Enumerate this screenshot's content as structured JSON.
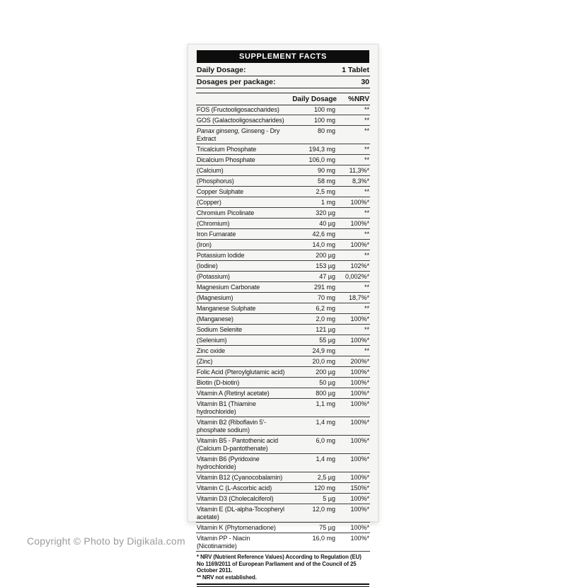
{
  "watermark": "Copyright © Photo by Digikala.com",
  "label": {
    "title": "SUPPLEMENT FACTS",
    "info_rows": [
      {
        "name": "Daily Dosage:",
        "value": "1 Tablet"
      },
      {
        "name": "Dosages per package:",
        "value": "30"
      }
    ],
    "columns": {
      "dosage": "Daily Dosage",
      "nrv": "%NRV"
    },
    "rows": [
      {
        "name": "FOS (Fructooligosaccharides)",
        "amount": "100 mg",
        "nrv": "**"
      },
      {
        "name": "GOS (Galactooligosaccharides)",
        "amount": "100 mg",
        "nrv": "**"
      },
      {
        "italic": "Panax ginseng,",
        "name": " Ginseng - Dry Extract",
        "amount": "80 mg",
        "nrv": "**"
      },
      {
        "name": "Tricalcium Phosphate",
        "amount": "194,3 mg",
        "nrv": "**"
      },
      {
        "name": "Dicalcium Phosphate",
        "amount": "106,0 mg",
        "nrv": "**"
      },
      {
        "name": "(Calcium)",
        "amount": "90 mg",
        "nrv": "11,3%*"
      },
      {
        "name": "(Phosphorus)",
        "amount": "58 mg",
        "nrv": "8,3%*"
      },
      {
        "name": "Copper Sulphate",
        "amount": "2,5 mg",
        "nrv": "**"
      },
      {
        "name": "(Copper)",
        "amount": "1 mg",
        "nrv": "100%*"
      },
      {
        "name": "Chromium Picolinate",
        "amount": "320 µg",
        "nrv": "**"
      },
      {
        "name": "(Chromium)",
        "amount": "40 µg",
        "nrv": "100%*"
      },
      {
        "name": "Iron Fumarate",
        "amount": "42,6 mg",
        "nrv": "**"
      },
      {
        "name": "(Iron)",
        "amount": "14,0 mg",
        "nrv": "100%*"
      },
      {
        "name": "Potassium Iodide",
        "amount": "200 µg",
        "nrv": "**"
      },
      {
        "name": "(Iodine)",
        "amount": "153 µg",
        "nrv": "102%*"
      },
      {
        "name": "(Potassium)",
        "amount": "47 µg",
        "nrv": "0,002%*"
      },
      {
        "name": "Magnesium Carbonate",
        "amount": "291 mg",
        "nrv": "**"
      },
      {
        "name": "(Magnesium)",
        "amount": "70 mg",
        "nrv": "18,7%*"
      },
      {
        "name": "Manganese Sulphate",
        "amount": "6,2 mg",
        "nrv": "**"
      },
      {
        "name": "(Manganese)",
        "amount": "2,0 mg",
        "nrv": "100%*"
      },
      {
        "name": "Sodium Selenite",
        "amount": "121 µg",
        "nrv": "**"
      },
      {
        "name": "(Selenium)",
        "amount": "55 µg",
        "nrv": "100%*"
      },
      {
        "name": "Zinc oxide",
        "amount": "24,9 mg",
        "nrv": "**"
      },
      {
        "name": "(Zinc)",
        "amount": "20,0 mg",
        "nrv": "200%*"
      },
      {
        "name": "Folic Acid (Pteroylglutamic acid)",
        "amount": "200 µg",
        "nrv": "100%*"
      },
      {
        "name": "Biotin (D-biotin)",
        "amount": "50 µg",
        "nrv": "100%*"
      },
      {
        "name": "Vitamin A (Retinyl acetate)",
        "amount": "800 µg",
        "nrv": "100%*"
      },
      {
        "name": "Vitamin B1 (Thiamine hydrochloride)",
        "amount": "1,1 mg",
        "nrv": "100%*"
      },
      {
        "name": "Vitamin B2 (Riboflavin 5'-phosphate sodium)",
        "amount": "1,4 mg",
        "nrv": "100%*"
      },
      {
        "name": "Vitamin B5 - Pantothenic acid",
        "sub": "(Calcium D-pantothenate)",
        "amount": "6,0 mg",
        "nrv": "100%*"
      },
      {
        "name": "Vitamin B6 (Pyridoxine hydrochloride)",
        "amount": "1,4 mg",
        "nrv": "100%*"
      },
      {
        "name": "Vitamin B12 (Cyanocobalamin)",
        "amount": "2,5 µg",
        "nrv": "100%*"
      },
      {
        "name": "Vitamin C (L-Ascorbic acid)",
        "amount": "120 mg",
        "nrv": "150%*"
      },
      {
        "name": "Vitamin D3 (Cholecalciferol)",
        "amount": "5 µg",
        "nrv": "100%*"
      },
      {
        "name": "Vitamin E (DL-alpha-Tocopheryl acetate)",
        "amount": "12,0 mg",
        "nrv": "100%*"
      },
      {
        "name": "Vitamin K (Phytomenadione)",
        "amount": "75 µg",
        "nrv": "100%*"
      },
      {
        "name": "Vitamin PP - Niacin (Nicotinamide)",
        "amount": "16,0 mg",
        "nrv": "100%*"
      }
    ],
    "footnotes": [
      "* NRV (Nutrient Reference Values) According to Regulation (EU) No 1169/2011 of European Parliament and of the Council of 25 October 2011.",
      "** NRV not established."
    ]
  }
}
